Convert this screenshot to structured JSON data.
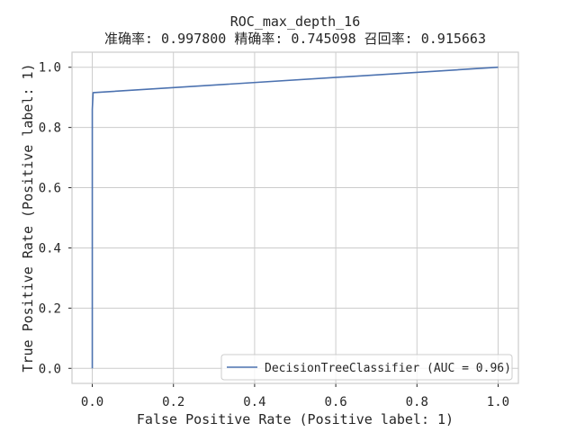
{
  "chart_data": {
    "type": "line",
    "title": "ROC_max_depth_16",
    "subtitle": "准确率: 0.997800 精确率: 0.745098 召回率: 0.915663",
    "xlabel": "False Positive Rate (Positive label: 1)",
    "ylabel": "True Positive Rate (Positive label: 1)",
    "xlim": [
      -0.05,
      1.05
    ],
    "ylim": [
      -0.05,
      1.05
    ],
    "xticks": [
      0.0,
      0.2,
      0.4,
      0.6,
      0.8,
      1.0
    ],
    "xtick_labels": [
      "0.0",
      "0.2",
      "0.4",
      "0.6",
      "0.8",
      "1.0"
    ],
    "yticks": [
      0.0,
      0.2,
      0.4,
      0.6,
      0.8,
      1.0
    ],
    "ytick_labels": [
      "0.0",
      "0.2",
      "0.4",
      "0.6",
      "0.8",
      "1.0"
    ],
    "grid": true,
    "legend_position": "lower-right",
    "series": [
      {
        "name": "DecisionTreeClassifier (AUC = 0.96)",
        "color": "#4c72b0",
        "x": [
          0.0,
          0.0,
          0.0,
          0.002,
          1.0
        ],
        "y": [
          0.0,
          0.8,
          0.86,
          0.915663,
          1.0
        ]
      }
    ]
  }
}
